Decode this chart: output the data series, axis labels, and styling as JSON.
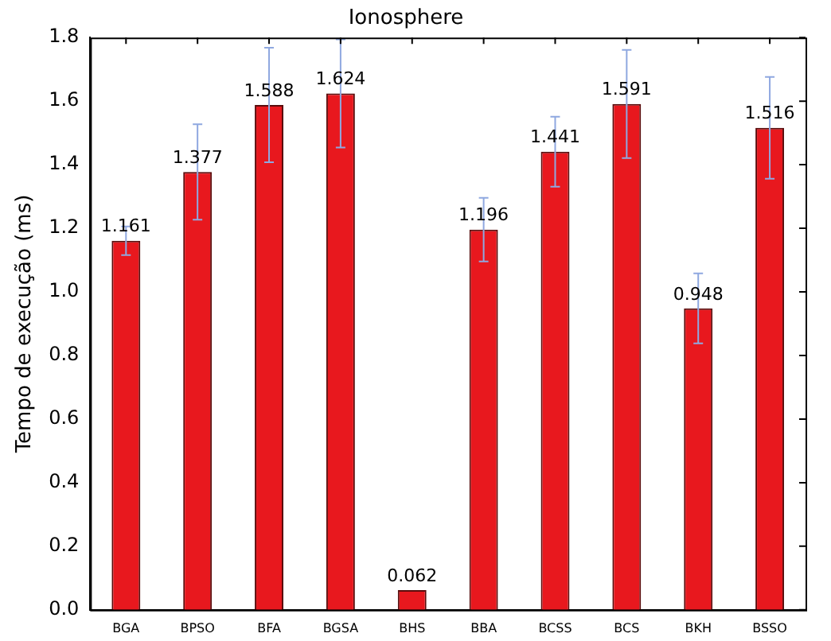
{
  "chart_data": {
    "type": "bar",
    "title": "Ionosphere",
    "ylabel": "Tempo de execução (ms)",
    "categories": [
      "BGA",
      "BPSO",
      "BFA",
      "BGSA",
      "BHS",
      "BBA",
      "BCSS",
      "BCS",
      "BKH",
      "BSSO"
    ],
    "values": [
      1.161,
      1.377,
      1.588,
      1.624,
      0.062,
      1.196,
      1.441,
      1.591,
      0.948,
      1.516
    ],
    "errors": [
      0.045,
      0.15,
      0.18,
      0.17,
      null,
      0.1,
      0.11,
      0.17,
      0.11,
      0.16
    ],
    "color": "#e8181e",
    "data_labels": true,
    "grid": false,
    "legend": false,
    "ylim": [
      0,
      1.8
    ],
    "yticks": [
      {
        "value": 0,
        "label": "0.0"
      },
      0.2,
      0.4,
      0.6,
      0.8,
      {
        "value": 1,
        "label": "1.0"
      },
      1.2,
      1.4,
      1.6,
      1.8
    ]
  }
}
